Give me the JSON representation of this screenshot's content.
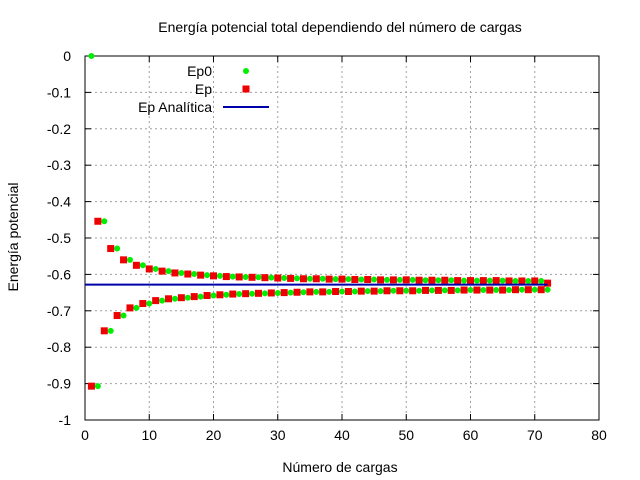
{
  "chart_data": {
    "type": "scatter",
    "title": "Energía potencial total dependiendo del número de cargas",
    "xlabel": "Número de cargas",
    "ylabel": "Energía potencial",
    "xlim": [
      0,
      80
    ],
    "ylim": [
      -1,
      0
    ],
    "xticks": [
      "0",
      "10",
      "20",
      "30",
      "40",
      "50",
      "60",
      "70",
      "80"
    ],
    "yticks": [
      "0",
      "-0.1",
      "-0.2",
      "-0.3",
      "-0.4",
      "-0.5",
      "-0.6",
      "-0.7",
      "-0.8",
      "-0.9",
      "-1"
    ],
    "grid": true,
    "legend_position": "top-left",
    "series": [
      {
        "name": "Ep0",
        "color": "#00ee00",
        "marker": "circle",
        "x": [
          1,
          2,
          3,
          4,
          5,
          6,
          7,
          8,
          9,
          10,
          11,
          12,
          13,
          14,
          15,
          16,
          17,
          18,
          19,
          20,
          21,
          22,
          23,
          24,
          25,
          26,
          27,
          28,
          29,
          30,
          31,
          32,
          33,
          34,
          35,
          36,
          37,
          38,
          39,
          40,
          41,
          42,
          43,
          44,
          45,
          46,
          47,
          48,
          49,
          50,
          51,
          52,
          53,
          54,
          55,
          56,
          57,
          58,
          59,
          60,
          61,
          62,
          63,
          64,
          65,
          66,
          67,
          68,
          69,
          70,
          71,
          72
        ],
        "y": [
          0.0,
          -0.907,
          -0.454,
          -0.755,
          -0.529,
          -0.713,
          -0.56,
          -0.692,
          -0.575,
          -0.68,
          -0.585,
          -0.672,
          -0.591,
          -0.667,
          -0.596,
          -0.664,
          -0.599,
          -0.661,
          -0.602,
          -0.658,
          -0.604,
          -0.656,
          -0.606,
          -0.654,
          -0.607,
          -0.653,
          -0.608,
          -0.652,
          -0.609,
          -0.651,
          -0.61,
          -0.65,
          -0.611,
          -0.649,
          -0.612,
          -0.648,
          -0.612,
          -0.648,
          -0.613,
          -0.647,
          -0.613,
          -0.647,
          -0.614,
          -0.646,
          -0.614,
          -0.646,
          -0.615,
          -0.645,
          -0.615,
          -0.645,
          -0.615,
          -0.645,
          -0.616,
          -0.644,
          -0.616,
          -0.644,
          -0.616,
          -0.644,
          -0.617,
          -0.643,
          -0.617,
          -0.643,
          -0.617,
          -0.643,
          -0.617,
          -0.643,
          -0.618,
          -0.642,
          -0.618,
          -0.642,
          -0.618,
          -0.642
        ]
      },
      {
        "name": "Ep",
        "color": "#ee0000",
        "marker": "square",
        "x": [
          1,
          2,
          3,
          4,
          5,
          6,
          7,
          8,
          9,
          10,
          11,
          12,
          13,
          14,
          15,
          16,
          17,
          18,
          19,
          20,
          21,
          22,
          23,
          24,
          25,
          26,
          27,
          28,
          29,
          30,
          31,
          32,
          33,
          34,
          35,
          36,
          37,
          38,
          39,
          40,
          41,
          42,
          43,
          44,
          45,
          46,
          47,
          48,
          49,
          50,
          51,
          52,
          53,
          54,
          55,
          56,
          57,
          58,
          59,
          60,
          61,
          62,
          63,
          64,
          65,
          66,
          67,
          68,
          69,
          70,
          71,
          72
        ],
        "y": [
          -0.907,
          -0.454,
          -0.755,
          -0.529,
          -0.713,
          -0.56,
          -0.692,
          -0.575,
          -0.68,
          -0.585,
          -0.672,
          -0.591,
          -0.667,
          -0.596,
          -0.664,
          -0.599,
          -0.661,
          -0.602,
          -0.658,
          -0.604,
          -0.656,
          -0.606,
          -0.654,
          -0.607,
          -0.653,
          -0.608,
          -0.652,
          -0.609,
          -0.651,
          -0.61,
          -0.65,
          -0.611,
          -0.649,
          -0.612,
          -0.648,
          -0.612,
          -0.648,
          -0.613,
          -0.647,
          -0.613,
          -0.647,
          -0.614,
          -0.646,
          -0.614,
          -0.646,
          -0.615,
          -0.645,
          -0.615,
          -0.645,
          -0.615,
          -0.645,
          -0.616,
          -0.644,
          -0.616,
          -0.644,
          -0.616,
          -0.644,
          -0.617,
          -0.643,
          -0.617,
          -0.643,
          -0.617,
          -0.643,
          -0.617,
          -0.643,
          -0.618,
          -0.642,
          -0.618,
          -0.642,
          -0.618,
          -0.642,
          -0.624
        ]
      },
      {
        "name": "Ep Analítica",
        "color": "#0000aa",
        "marker": "line",
        "x": [
          0,
          72
        ],
        "y": [
          -0.628,
          -0.628
        ]
      }
    ]
  }
}
